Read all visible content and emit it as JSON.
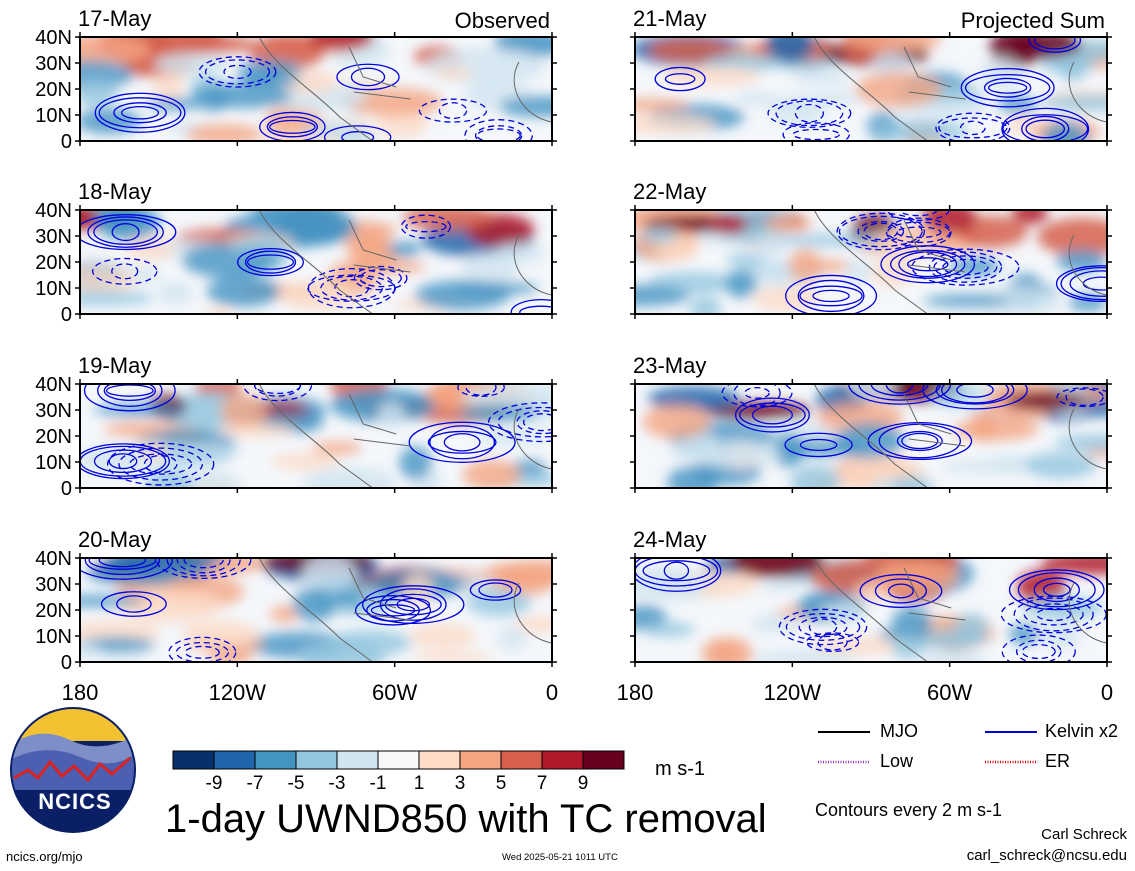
{
  "figure": {
    "title": "1-day UWND850 with TC removal",
    "units": "m s-1",
    "contour_note": "Contours every 2 m s-1",
    "author": "Carl Schreck",
    "email": "carl_schreck@ncsu.edu",
    "website": "ncics.org/mjo",
    "timestamp": "Wed 2025-05-21 1011 UTC",
    "logo_text": "NCICS"
  },
  "columns": [
    "Observed",
    "Projected Sum"
  ],
  "legend": {
    "items": [
      {
        "label": "MJO",
        "color": "#000000",
        "style": "solid"
      },
      {
        "label": "Kelvin x2",
        "color": "#0000dd",
        "style": "solid"
      },
      {
        "label": "Low",
        "color": "#9933cc",
        "style": "dotted"
      },
      {
        "label": "ER",
        "color": "#dd0000",
        "style": "dotted"
      }
    ]
  },
  "colorbar": {
    "ticks": [
      "-9",
      "-7",
      "-5",
      "-3",
      "-1",
      "1",
      "3",
      "5",
      "7",
      "9"
    ],
    "colors": [
      "#08306b",
      "#2166ac",
      "#4393c3",
      "#92c5de",
      "#d1e5f0",
      "#f7f7f7",
      "#fddbc7",
      "#f4a582",
      "#d6604d",
      "#b2182b",
      "#67001f"
    ]
  },
  "chart_data": {
    "type": "heatmap",
    "title": "1-day UWND850 with TC removal",
    "colorbar_units": "m s-1",
    "x_ticks": [
      "180",
      "120W",
      "60W",
      "0"
    ],
    "y_ticks": [
      "40N",
      "30N",
      "20N",
      "10N",
      "0"
    ],
    "xlim": [
      -180,
      0
    ],
    "ylim": [
      0,
      40
    ],
    "panels": [
      {
        "date": "17-May",
        "kind": "Observed"
      },
      {
        "date": "18-May",
        "kind": "Observed"
      },
      {
        "date": "19-May",
        "kind": "Observed"
      },
      {
        "date": "20-May",
        "kind": "Observed"
      },
      {
        "date": "21-May",
        "kind": "Projected Sum"
      },
      {
        "date": "22-May",
        "kind": "Projected Sum"
      },
      {
        "date": "23-May",
        "kind": "Projected Sum"
      },
      {
        "date": "24-May",
        "kind": "Projected Sum"
      }
    ]
  }
}
